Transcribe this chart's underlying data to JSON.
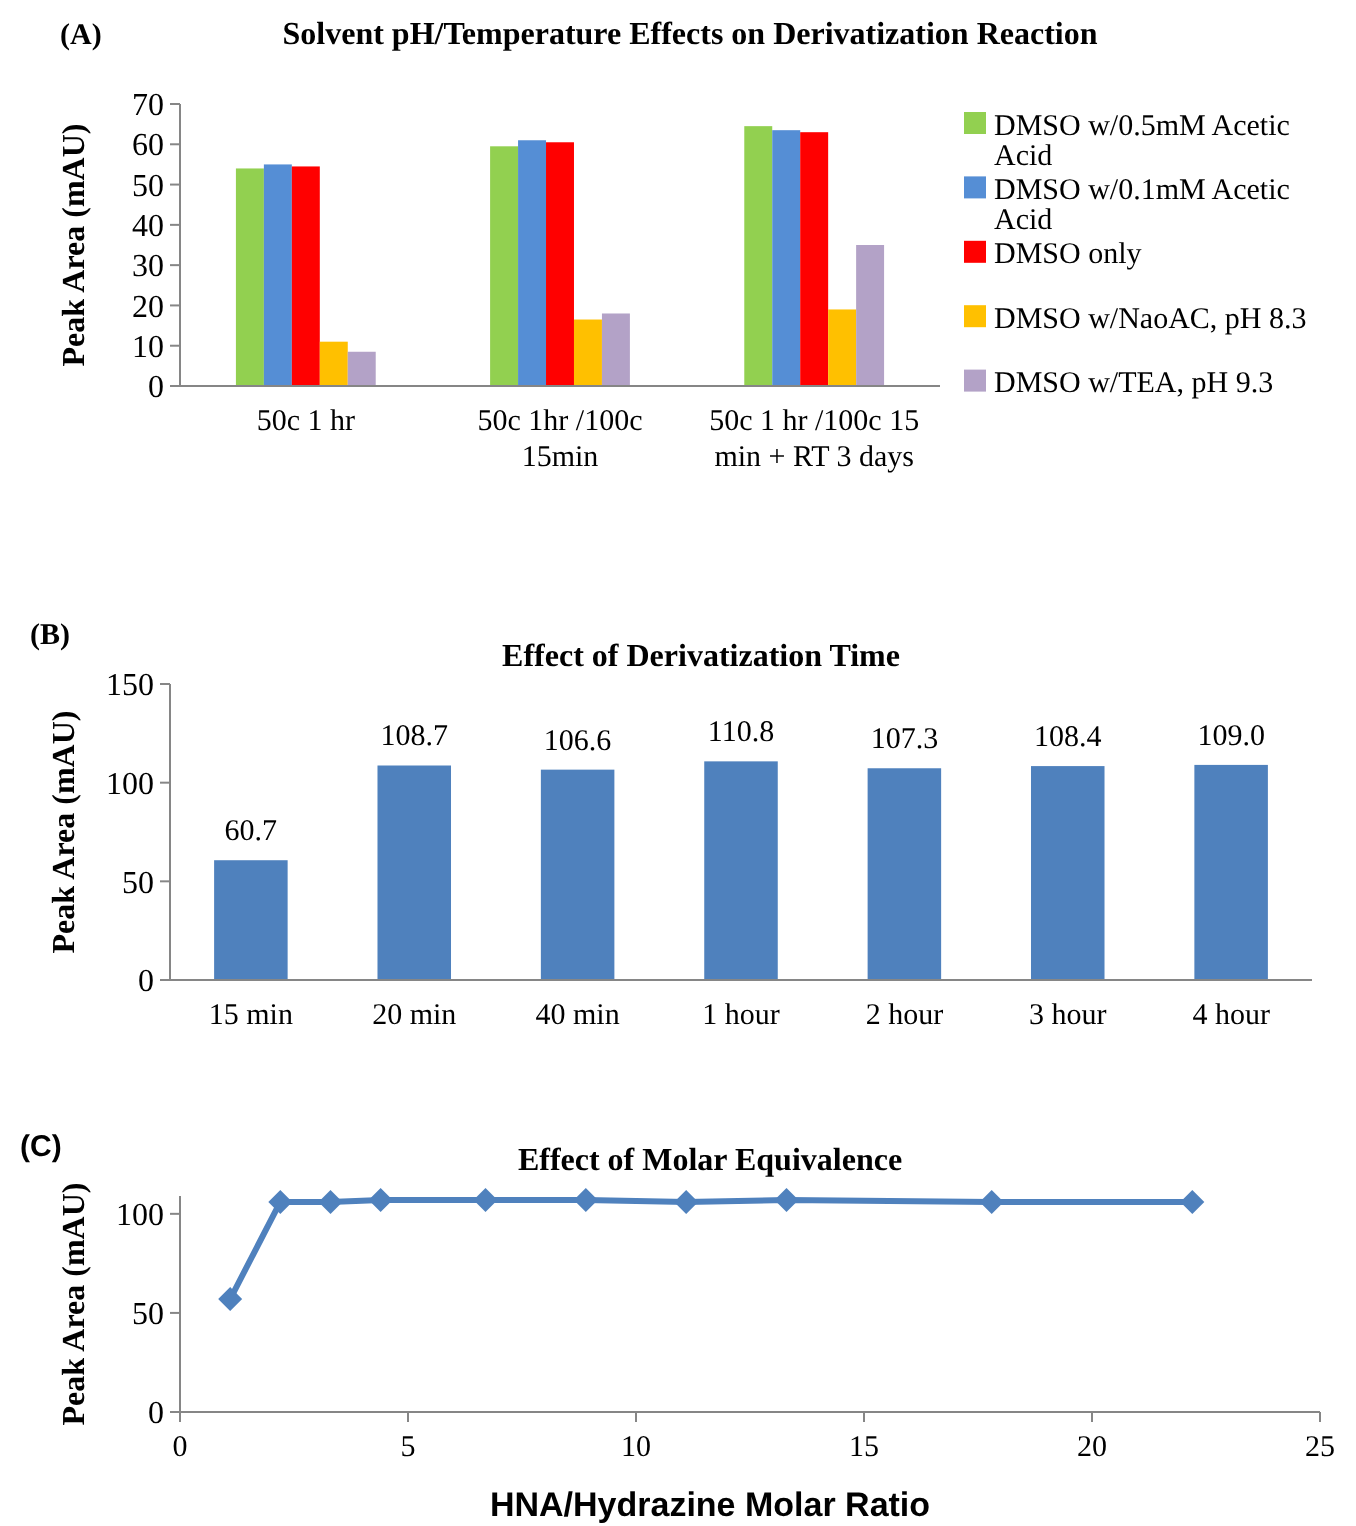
{
  "chart_data": [
    {
      "type": "bar",
      "title": "Solvent pH/Temperature Effects on Derivatization Reaction",
      "ylabel": "Peak Area (mAU)",
      "annotations": [
        "(A)"
      ],
      "categories": [
        "50c 1 hr",
        "50c 1hr /100c 15min",
        "50c 1 hr /100c 15 min + RT 3 days"
      ],
      "series": [
        {
          "name": "DMSO w/0.5mM Acetic Acid",
          "color": "#92d050",
          "values": [
            54,
            59.5,
            64.5
          ]
        },
        {
          "name": "DMSO w/0.1mM Acetic Acid",
          "color": "#558ed5",
          "values": [
            55,
            61,
            63.5
          ]
        },
        {
          "name": "DMSO only",
          "color": "#ff0000",
          "values": [
            54.5,
            60.5,
            63
          ]
        },
        {
          "name": "DMSO w/NaoAC, pH 8.3",
          "color": "#ffc000",
          "values": [
            11,
            16.5,
            19
          ]
        },
        {
          "name": "DMSO w/TEA, pH 9.3",
          "color": "#b3a2c7",
          "values": [
            8.5,
            18,
            35
          ]
        }
      ],
      "ylim": [
        0,
        70
      ],
      "yticks": [
        0,
        10,
        20,
        30,
        40,
        50,
        60,
        70
      ],
      "legend": "right",
      "grid": false
    },
    {
      "type": "bar",
      "title": "Effect of Derivatization Time",
      "ylabel": "Peak Area (mAU)",
      "annotations": [
        "(B)"
      ],
      "categories": [
        "15 min",
        "20 min",
        "40 min",
        "1 hour",
        "2 hour",
        "3 hour",
        "4 hour"
      ],
      "values": [
        60.7,
        108.7,
        106.6,
        110.8,
        107.3,
        108.4,
        109.0
      ],
      "value_labels": [
        "60.7",
        "108.7",
        "106.6",
        "110.8",
        "107.3",
        "108.4",
        "109.0"
      ],
      "color": "#4f81bd",
      "ylim": [
        0,
        150
      ],
      "yticks": [
        0,
        50,
        100,
        150
      ],
      "grid": false
    },
    {
      "type": "line",
      "title": "Effect of Molar Equivalence",
      "xlabel": "HNA/Hydrazine Molar Ratio",
      "ylabel": "Peak Area (mAU)",
      "annotations": [
        "(C)"
      ],
      "x": [
        1.1,
        2.2,
        3.3,
        4.4,
        6.7,
        8.9,
        11.1,
        13.3,
        17.8,
        22.2
      ],
      "values": [
        57,
        106,
        106,
        107,
        107,
        107,
        106,
        107,
        106,
        106
      ],
      "color": "#4f81bd",
      "marker": "diamond",
      "line_style": "solid",
      "xlim": [
        0,
        25
      ],
      "xticks": [
        0,
        5,
        10,
        15,
        20,
        25
      ],
      "ylim": [
        0,
        109
      ],
      "yticks": [
        0,
        50,
        100
      ],
      "grid": false
    }
  ]
}
